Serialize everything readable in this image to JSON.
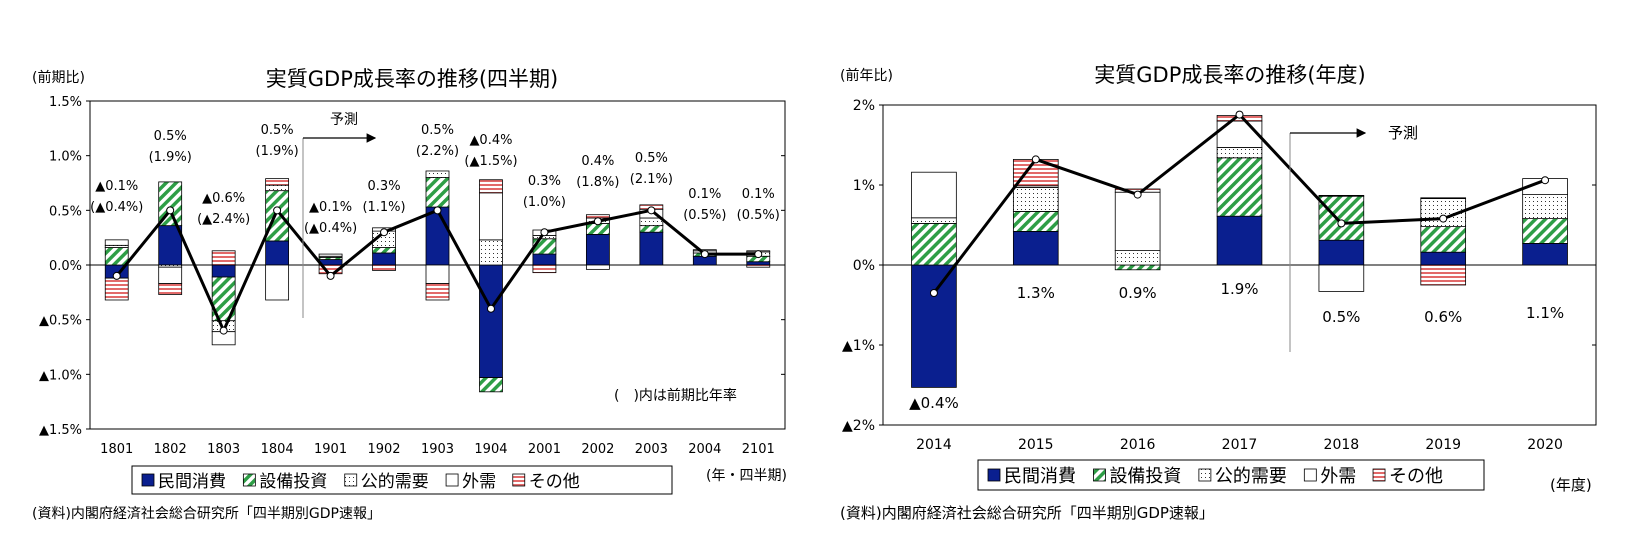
{
  "colors": {
    "private_consumption": "#0a1f8f",
    "capex": "#2e9e46",
    "public_demand": "#ffffff",
    "external": "#ffffff",
    "other": "#e26a6a",
    "line": "#000000"
  },
  "chart_data": [
    {
      "type": "bar",
      "stacked": true,
      "title": "実質GDP成長率の推移(四半期)",
      "ylabel": "(前期比)",
      "xlabel": "(年・四半期)",
      "ylim": [
        -1.5,
        1.5
      ],
      "yticks": [
        1.5,
        1.0,
        0.5,
        0.0,
        -0.5,
        -1.0,
        -1.5
      ],
      "ytick_labels": [
        "1.5%",
        "1.0%",
        "0.5%",
        "0.0%",
        "▲0.5%",
        "▲1.0%",
        "▲1.5%"
      ],
      "categories": [
        "1801",
        "1802",
        "1803",
        "1804",
        "1901",
        "1902",
        "1903",
        "1904",
        "2001",
        "2002",
        "2003",
        "2004",
        "2101"
      ],
      "series": [
        {
          "name": "民間消費",
          "values": [
            -0.12,
            0.36,
            -0.11,
            0.22,
            0.05,
            0.11,
            0.53,
            -1.03,
            0.1,
            0.28,
            0.3,
            0.08,
            0.03
          ]
        },
        {
          "name": "設備投資",
          "values": [
            0.16,
            0.4,
            -0.4,
            0.46,
            0.02,
            0.05,
            0.27,
            -0.13,
            0.14,
            0.1,
            0.06,
            0.03,
            0.05
          ]
        },
        {
          "name": "公的需要",
          "values": [
            0.02,
            -0.02,
            -0.1,
            0.05,
            0.01,
            0.15,
            0.06,
            0.23,
            0.03,
            0.05,
            0.07,
            0.02,
            0.04
          ]
        },
        {
          "name": "外需",
          "values": [
            0.05,
            -0.15,
            -0.12,
            -0.32,
            0.02,
            0.03,
            -0.17,
            0.43,
            0.05,
            -0.04,
            0.08,
            0.01,
            0.01
          ]
        },
        {
          "name": "その他",
          "values": [
            -0.2,
            -0.1,
            0.13,
            0.06,
            -0.08,
            -0.05,
            -0.15,
            0.12,
            -0.07,
            0.03,
            0.04,
            0.0,
            -0.02
          ]
        }
      ],
      "line": [
        -0.1,
        0.5,
        -0.6,
        0.5,
        -0.1,
        0.3,
        0.5,
        -0.4,
        0.3,
        0.4,
        0.5,
        0.1,
        0.1
      ],
      "labels": [
        {
          "line1": "▲0.1%",
          "line2": "(▲0.4%)"
        },
        {
          "line1": "0.5%",
          "line2": "(1.9%)"
        },
        {
          "line1": "▲0.6%",
          "line2": "(▲2.4%)"
        },
        {
          "line1": "0.5%",
          "line2": "(1.9%)"
        },
        {
          "line1": "▲0.1%",
          "line2": "(▲0.4%)"
        },
        {
          "line1": "0.3%",
          "line2": "(1.1%)"
        },
        {
          "line1": "0.5%",
          "line2": "(2.2%)"
        },
        {
          "line1": "▲0.4%",
          "line2": "(▲1.5%)"
        },
        {
          "line1": "0.3%",
          "line2": "(1.0%)"
        },
        {
          "line1": "0.4%",
          "line2": "(1.8%)"
        },
        {
          "line1": "0.5%",
          "line2": "(2.1%)"
        },
        {
          "line1": "0.1%",
          "line2": "(0.5%)"
        },
        {
          "line1": "0.1%",
          "line2": "(0.5%)"
        }
      ],
      "forecast_label": "予測",
      "note": "(　)内は前期比年率",
      "legend_position": "bottom",
      "source": "(資料)内閣府経済社会総合研究所「四半期別GDP速報」"
    },
    {
      "type": "bar",
      "stacked": true,
      "title": "実質GDP成長率の推移(年度)",
      "ylabel": "(前年比)",
      "xlabel": "(年度)",
      "ylim": [
        -2,
        2
      ],
      "yticks": [
        2,
        1,
        0,
        -1,
        -2
      ],
      "ytick_labels": [
        "2%",
        "1%",
        "0%",
        "▲1%",
        "▲2%"
      ],
      "categories": [
        "2014",
        "2015",
        "2016",
        "2017",
        "2018",
        "2019",
        "2020"
      ],
      "series": [
        {
          "name": "民間消費",
          "values": [
            -1.53,
            0.42,
            0.0,
            0.61,
            0.31,
            0.16,
            0.27
          ]
        },
        {
          "name": "設備投資",
          "values": [
            0.52,
            0.25,
            -0.06,
            0.73,
            0.55,
            0.32,
            0.31
          ]
        },
        {
          "name": "公的需要",
          "values": [
            0.07,
            0.3,
            0.18,
            0.13,
            0.01,
            0.35,
            0.3
          ]
        },
        {
          "name": "外需",
          "values": [
            0.57,
            0.02,
            0.73,
            0.33,
            -0.33,
            0.01,
            0.2
          ]
        },
        {
          "name": "その他",
          "values": [
            0.0,
            0.33,
            0.04,
            0.07,
            0.0,
            -0.25,
            0.0
          ]
        }
      ],
      "line": [
        -0.35,
        1.32,
        0.88,
        1.88,
        0.52,
        0.58,
        1.06
      ],
      "labels": [
        "▲0.4%",
        "1.3%",
        "0.9%",
        "1.9%",
        "0.5%",
        "0.6%",
        "1.1%"
      ],
      "forecast_label": "予測",
      "legend_position": "bottom",
      "source": "(資料)内閣府経済社会総合研究所「四半期別GDP速報」"
    }
  ]
}
